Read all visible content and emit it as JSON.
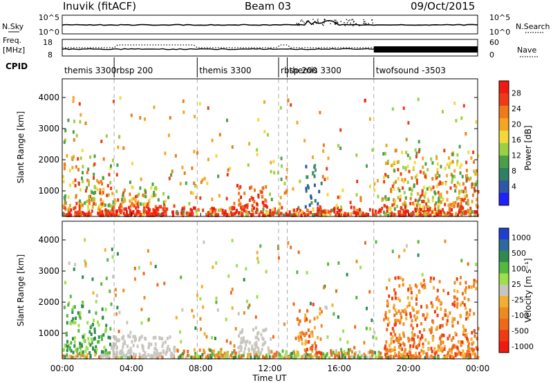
{
  "header": {
    "title": "Inuvik (fitACF)",
    "beam": "Beam 03",
    "date": "09/Oct/2015"
  },
  "noise_panel": {
    "left_label": "N.Sky",
    "left_ticks": [
      "10^5",
      "10^0"
    ],
    "right_ticks": [
      "10^5",
      "10^0"
    ],
    "right_label": "N.Search"
  },
  "freq_panel": {
    "label_top": "Freq.",
    "label_bottom": "[MHz]",
    "left_ticks": [
      "18",
      "8"
    ],
    "right_ticks": [
      "60",
      "0"
    ],
    "right_label": "Nave"
  },
  "cpid": {
    "label": "CPID",
    "segments": [
      {
        "name": "themis 3300",
        "start_hr": 0.0
      },
      {
        "name": "rbsp 200",
        "start_hr": 3.0
      },
      {
        "name": "themis 3300",
        "start_hr": 7.8
      },
      {
        "name": "rbsp 200",
        "start_hr": 12.5
      },
      {
        "name": "themis 3300",
        "start_hr": 13.0
      },
      {
        "name": "twofsound -3503",
        "start_hr": 18.0
      }
    ]
  },
  "chart_data": [
    {
      "type": "heatmap",
      "panel": "power",
      "ylabel": "Slant Range [km]",
      "yticks": [
        "1000",
        "2000",
        "3000",
        "4000"
      ],
      "ylim": [
        180,
        4600
      ],
      "colorbar": {
        "label": "Power [dB]",
        "ticks": [
          "4",
          "8",
          "12",
          "16",
          "20",
          "24",
          "28"
        ],
        "colors": [
          "#1f1fff",
          "#2e57a8",
          "#2f7f63",
          "#4a9f48",
          "#9bd043",
          "#f2d93a",
          "#f5a524",
          "#ee7a1a",
          "#f03a16",
          "#f01a10"
        ]
      },
      "regions": [
        {
          "t": [
            0.0,
            2.8
          ],
          "range": [
            300,
            2100
          ],
          "level": "16-24"
        },
        {
          "t": [
            0.0,
            6.5
          ],
          "range": [
            200,
            500
          ],
          "level": "24-28"
        },
        {
          "t": [
            2.5,
            5.5
          ],
          "range": [
            300,
            1100
          ],
          "level": "8-16"
        },
        {
          "t": [
            10.0,
            11.8
          ],
          "range": [
            400,
            1200
          ],
          "level": "24-28"
        },
        {
          "t": [
            14.0,
            15.0
          ],
          "range": [
            400,
            1800
          ],
          "level": "4-12"
        },
        {
          "t": [
            18.5,
            24.0
          ],
          "range": [
            200,
            2300
          ],
          "level": "16-24"
        }
      ]
    },
    {
      "type": "heatmap",
      "panel": "velocity",
      "ylabel": "Slant Range [km]",
      "yticks": [
        "1000",
        "2000",
        "3000",
        "4000"
      ],
      "ylim": [
        180,
        4600
      ],
      "xlabel": "Time UT",
      "xticks": [
        "00:00",
        "04:00",
        "08:00",
        "12:00",
        "16:00",
        "20:00",
        "00:00"
      ],
      "xlim": [
        0,
        24
      ],
      "colorbar": {
        "label": "Velocity [m s⁻¹]",
        "ticks": [
          "1000",
          "500",
          "100",
          "25",
          "-25",
          "-100",
          "-500",
          "-1000"
        ],
        "colors": [
          "#1f3fd0",
          "#2e6aa0",
          "#2f8a50",
          "#55b840",
          "#9de04a",
          "#c8c6be",
          "#f2b030",
          "#ee8a20",
          "#ef6a18",
          "#f03a12",
          "#f01a10"
        ]
      },
      "regions": [
        {
          "t": [
            0.0,
            2.8
          ],
          "range": [
            300,
            2000
          ],
          "level": "25-100"
        },
        {
          "t": [
            2.0,
            6.5
          ],
          "range": [
            200,
            900
          ],
          "level": "-25-25"
        },
        {
          "t": [
            10.0,
            12.0
          ],
          "range": [
            300,
            1200
          ],
          "level": "-25-25"
        },
        {
          "t": [
            13.5,
            15.0
          ],
          "range": [
            300,
            1900
          ],
          "level": "-100--500"
        },
        {
          "t": [
            18.5,
            24.0
          ],
          "range": [
            200,
            2800
          ],
          "level": "-100--1000"
        }
      ]
    }
  ]
}
